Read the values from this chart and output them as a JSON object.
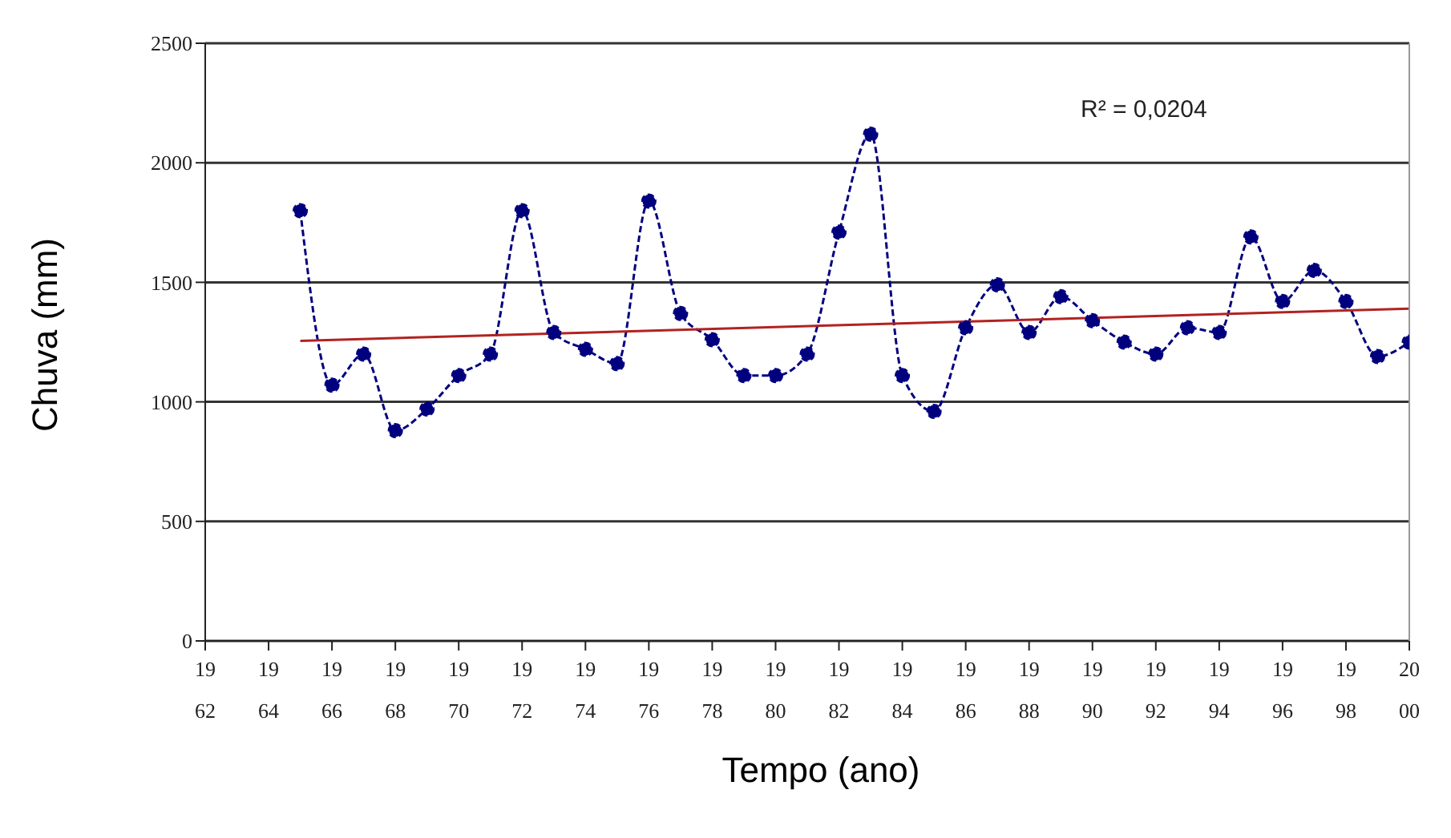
{
  "chart_data": {
    "type": "line",
    "xlabel": "Tempo (ano)",
    "ylabel": "Chuva (mm)",
    "x": [
      1965,
      1966,
      1967,
      1968,
      1969,
      1970,
      1971,
      1972,
      1973,
      1974,
      1975,
      1976,
      1977,
      1978,
      1979,
      1980,
      1981,
      1982,
      1983,
      1984,
      1985,
      1986,
      1987,
      1988,
      1989,
      1990,
      1991,
      1992,
      1993,
      1994,
      1995,
      1996,
      1997,
      1998,
      1999,
      2000
    ],
    "series": [
      {
        "color": "#00007f",
        "marker": "circle",
        "line_style": "dashed",
        "values": [
          1800,
          1070,
          1200,
          880,
          970,
          1110,
          1200,
          1800,
          1290,
          1220,
          1160,
          1840,
          1370,
          1260,
          1110,
          1110,
          1200,
          1710,
          2120,
          1110,
          960,
          1310,
          1490,
          1290,
          1440,
          1340,
          1250,
          1200,
          1310,
          1290,
          1690,
          1420,
          1550,
          1420,
          1190,
          1250
        ]
      },
      {
        "type": "line",
        "color": "#b22222",
        "marker": "none",
        "line_style": "solid",
        "x": [
          1965,
          2000
        ],
        "values": [
          1255,
          1390
        ]
      }
    ],
    "xlim": [
      1962,
      2000
    ],
    "xticks": [
      {
        "value": 1962,
        "label": "1962"
      },
      {
        "value": 1964,
        "label": "1964"
      },
      {
        "value": 1966,
        "label": "1966"
      },
      {
        "value": 1968,
        "label": "1968"
      },
      {
        "value": 1970,
        "label": "1970"
      },
      {
        "value": 1972,
        "label": "1972"
      },
      {
        "value": 1974,
        "label": "1974"
      },
      {
        "value": 1976,
        "label": "1976"
      },
      {
        "value": 1978,
        "label": "1978"
      },
      {
        "value": 1980,
        "label": "1980"
      },
      {
        "value": 1982,
        "label": "1982"
      },
      {
        "value": 1984,
        "label": "1984"
      },
      {
        "value": 1986,
        "label": "1986"
      },
      {
        "value": 1988,
        "label": "1988"
      },
      {
        "value": 1990,
        "label": "1990"
      },
      {
        "value": 1992,
        "label": "1992"
      },
      {
        "value": 1994,
        "label": "1994"
      },
      {
        "value": 1996,
        "label": "1996"
      },
      {
        "value": 1998,
        "label": "1998"
      },
      {
        "value": 2000,
        "label": "2000"
      }
    ],
    "ylim": [
      0,
      2500
    ],
    "yticks": [
      0,
      500,
      1000,
      1500,
      2000,
      2500
    ],
    "grid": "y",
    "annotations": [
      "R² = 0,0204"
    ]
  }
}
